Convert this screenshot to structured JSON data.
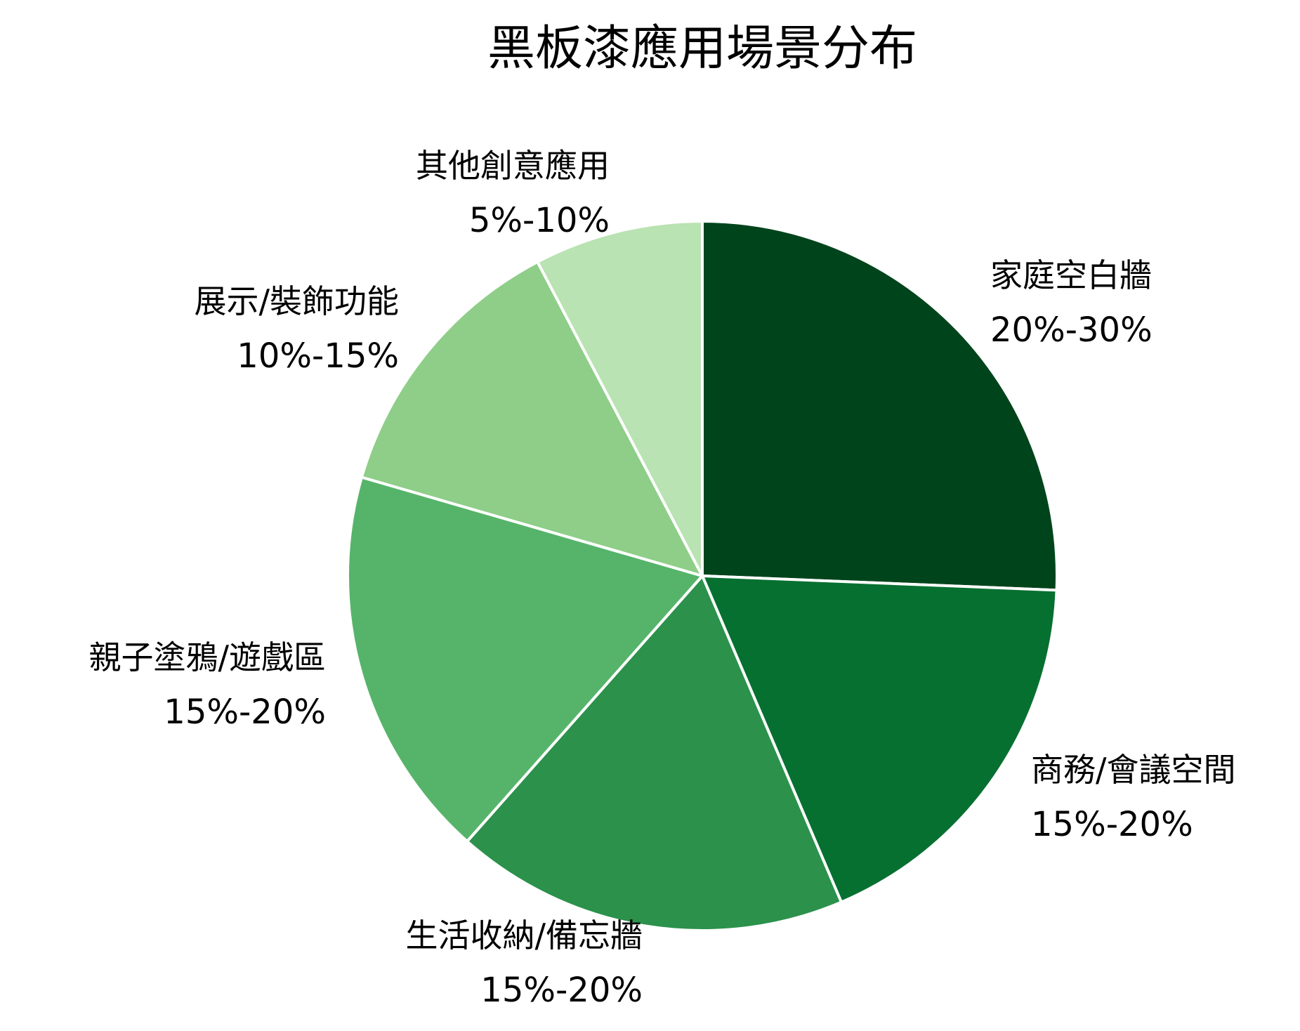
{
  "chart_data": {
    "type": "pie",
    "title": "黑板漆應用場景分布",
    "slices": [
      {
        "label": "家庭空白牆",
        "value_text": "20%-30%",
        "value": 25,
        "color": "#00441b"
      },
      {
        "label": "商務/會議空間",
        "value_text": "15%-20%",
        "value": 17.5,
        "color": "#067030"
      },
      {
        "label": "生活收納/備忘牆",
        "value_text": "15%-20%",
        "value": 17.5,
        "color": "#2b914b"
      },
      {
        "label": "親子塗鴉/遊戲區",
        "value_text": "15%-20%",
        "value": 17.5,
        "color": "#56b46a"
      },
      {
        "label": "展示/裝飾功能",
        "value_text": "10%-15%",
        "value": 12.5,
        "color": "#8ece88"
      },
      {
        "label": "其他創意應用",
        "value_text": "5%-10%",
        "value": 7.5,
        "color": "#b9e3b2"
      }
    ]
  }
}
